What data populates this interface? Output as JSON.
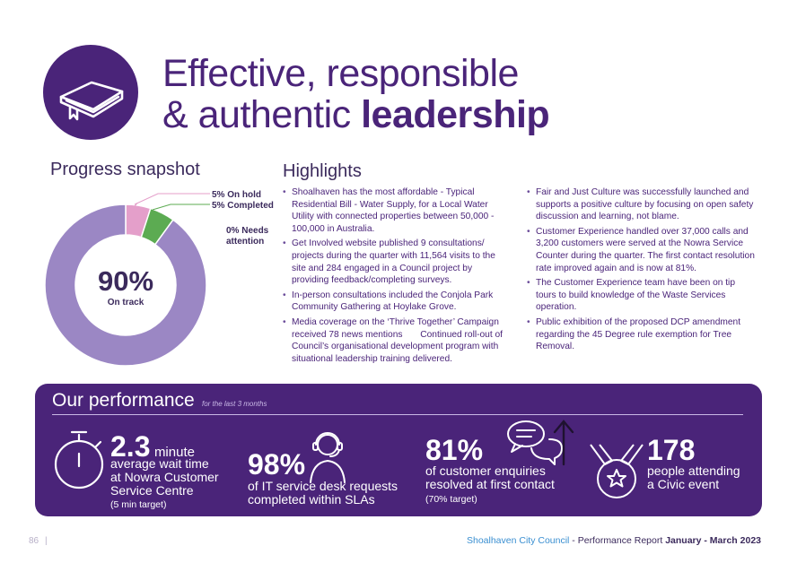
{
  "title": {
    "line1": "Effective, responsible",
    "line2_prefix": "& authentic ",
    "line2_bold": "leadership"
  },
  "icons": {
    "header": "book-icon"
  },
  "progress": {
    "heading": "Progress snapshot",
    "center_value": "90%",
    "center_label": "On track",
    "legend": {
      "on_hold": "5% On hold",
      "completed": "5% Completed",
      "needs_attention": "0% Needs attention"
    }
  },
  "chart_data": {
    "type": "pie",
    "donut": true,
    "categories": [
      "On track",
      "On hold",
      "Completed",
      "Needs attention"
    ],
    "values": [
      90,
      5,
      5,
      0
    ],
    "colors": [
      "#9b87c4",
      "#e49fca",
      "#5cab52",
      "#e05050"
    ]
  },
  "highlights": {
    "heading": "Highlights",
    "col1": [
      "Shoalhaven has the most affordable - Typical Residential Bill - Water Supply, for a Local Water Utility with connected properties between 50,000 - 100,000 in Australia.",
      "Get Involved website published 9 consultations/ projects during the quarter with 11,564 visits to the site and 284 engaged in a Council project by providing feedback/completing surveys.",
      "In-person consultations included the Conjola Park Community Gathering at Hoylake Grove.",
      "Media coverage on the ‘Thrive Together’ Campaign received 78 news mentions       Continued roll-out of Council’s organisational development program with situational leadership training delivered."
    ],
    "col2": [
      "Fair and Just Culture was successfully launched and supports a positive culture by focusing on open safety discussion and learning, not blame.",
      "Customer Experience handled over 37,000 calls and 3,200 customers were served at the Nowra Service Counter during the quarter. The first contact resolution rate improved again and is now at 81%.",
      "The Customer Experience team have been on tip tours to build knowledge of the Waste Services operation.",
      "Public exhibition of the proposed DCP amendment regarding the 45 Degree rule exemption for Tree Removal."
    ]
  },
  "performance": {
    "heading": "Our performance",
    "subheading": "for the last 3 months",
    "metrics": {
      "wait": {
        "value": "2.3",
        "unit": "minute",
        "line1": "average wait time",
        "line2": "at Nowra Customer",
        "line3": "Service Centre",
        "target": "(5 min target)",
        "icon": "stopwatch-icon"
      },
      "it": {
        "value": "98%",
        "line1": "of IT service desk requests",
        "line2": "completed within SLAs",
        "icon": "headset-person-icon"
      },
      "enquiries": {
        "value": "81%",
        "line1": "of customer enquiries",
        "line2": "resolved at first contact",
        "target": "(70% target)",
        "icon": "chat-bubbles-icon",
        "trend_icon": "up-arrow-icon"
      },
      "civic": {
        "value": "178",
        "line1": "people attending",
        "line2": "a Civic event",
        "icon": "medal-icon"
      }
    }
  },
  "footer": {
    "page_number": "86",
    "divider": "|",
    "org": "Shoalhaven City Council",
    "report": " - Performance Report ",
    "period": "January - March 2023"
  }
}
